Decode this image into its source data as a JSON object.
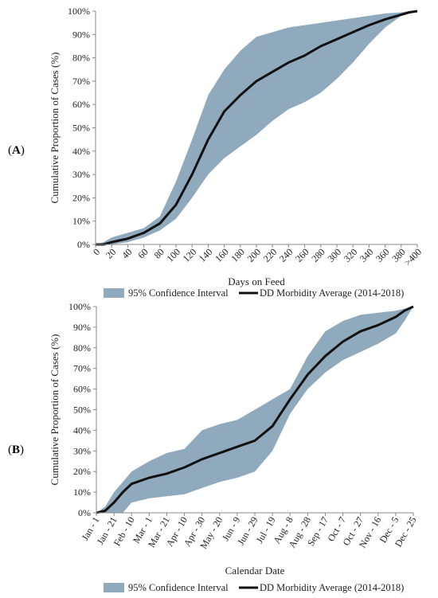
{
  "charts": [
    {
      "id": "A",
      "label": "A",
      "chart_data": {
        "type": "area",
        "xlabel": "Days on Feed",
        "ylabel": "Cumulative Proportion of Cases (%)",
        "x_ticks": [
          "0",
          "20",
          "40",
          "60",
          "80",
          "100",
          "120",
          "140",
          "160",
          "180",
          "200",
          "220",
          "240",
          "260",
          "280",
          "300",
          "320",
          "340",
          "360",
          "380",
          ">400"
        ],
        "y_ticks": [
          "0%",
          "10%",
          "20%",
          "30%",
          "40%",
          "50%",
          "60%",
          "70%",
          "80%",
          "90%",
          "100%"
        ],
        "xlim": [
          0,
          400
        ],
        "ylim": [
          0,
          100
        ],
        "grid": false,
        "legend_position": "bottom",
        "series": [
          {
            "name": "95% Confidence Interval",
            "kind": "band",
            "color": "#8fa9bd",
            "x": [
              0,
              10,
              20,
              40,
              60,
              80,
              100,
              120,
              140,
              160,
              180,
              200,
              220,
              240,
              260,
              280,
              300,
              320,
              340,
              360,
              380,
              390,
              400
            ],
            "lower": [
              0,
              0,
              0,
              1,
              3,
              6,
              11,
              20,
              30,
              37,
              42,
              47,
              53,
              58,
              61,
              65,
              71,
              78,
              86,
              93,
              98,
              99,
              100
            ],
            "upper": [
              0,
              1,
              3,
              5,
              7,
              12,
              27,
              45,
              64,
              75,
              83,
              89,
              91,
              93,
              94,
              95,
              96,
              97,
              98,
              99,
              99.5,
              100,
              100
            ]
          },
          {
            "name": "DD Morbidity Average (2014-2018)",
            "kind": "line",
            "color": "#111111",
            "x": [
              0,
              10,
              20,
              40,
              60,
              80,
              100,
              120,
              140,
              160,
              180,
              200,
              220,
              240,
              260,
              280,
              300,
              320,
              340,
              360,
              380,
              390,
              400
            ],
            "y": [
              0,
              0,
              1,
              2.5,
              5,
              9,
              17,
              30,
              45,
              57,
              64,
              70,
              74,
              78,
              81,
              85,
              88,
              91,
              94,
              96.5,
              98.5,
              99.5,
              100
            ]
          }
        ]
      }
    },
    {
      "id": "B",
      "label": "B",
      "chart_data": {
        "type": "area",
        "xlabel": "Calendar Date",
        "ylabel": "Cumulative Proportion of Cases (%)",
        "x_ticks": [
          "Jan - 1",
          "Jan - 21",
          "Feb - 10",
          "Mar - 1",
          "Mar - 21",
          "Apr - 10",
          "Apr - 30",
          "May - 20",
          "Jun - 9",
          "Jun - 29",
          "Jul - 19",
          "Aug - 8",
          "Aug - 28",
          "Sep - 17",
          "Oct - 7",
          "Oct - 27",
          "Nov - 16",
          "Dec - 5",
          "Dec - 25"
        ],
        "y_ticks": [
          "0%",
          "10%",
          "20%",
          "30%",
          "40%",
          "50%",
          "60%",
          "70%",
          "80%",
          "90%",
          "100%"
        ],
        "xlim": [
          0,
          18
        ],
        "ylim": [
          0,
          100
        ],
        "grid": false,
        "legend_position": "bottom",
        "series": [
          {
            "name": "95% Confidence Interval",
            "kind": "band",
            "color": "#8fa9bd",
            "x": [
              0,
              0.5,
              1,
              1.5,
              2,
              3,
              4,
              5,
              6,
              7,
              8,
              9,
              10,
              11,
              12,
              13,
              14,
              15,
              16,
              17,
              17.5,
              18
            ],
            "lower": [
              0,
              0,
              0,
              0,
              5,
              7,
              8,
              9,
              12,
              15,
              17,
              20,
              30,
              48,
              60,
              68,
              74,
              78,
              82,
              87,
              93,
              100
            ],
            "upper": [
              0,
              3,
              10,
              15,
              20,
              25,
              29,
              31,
              40,
              43,
              45,
              50,
              55,
              60,
              76,
              88,
              93,
              96,
              97,
              98,
              99,
              100
            ]
          },
          {
            "name": "DD Morbidity Average (2014-2018)",
            "kind": "line",
            "color": "#111111",
            "x": [
              0,
              0.5,
              1,
              1.5,
              2,
              3,
              4,
              5,
              6,
              7,
              8,
              9,
              10,
              11,
              12,
              13,
              14,
              15,
              16,
              17,
              17.5,
              18
            ],
            "y": [
              0,
              1,
              5,
              10,
              14,
              17,
              19,
              22,
              26,
              29,
              32,
              35,
              42,
              55,
              67,
              76,
              83,
              88,
              91,
              95,
              98,
              100
            ]
          }
        ]
      }
    }
  ]
}
